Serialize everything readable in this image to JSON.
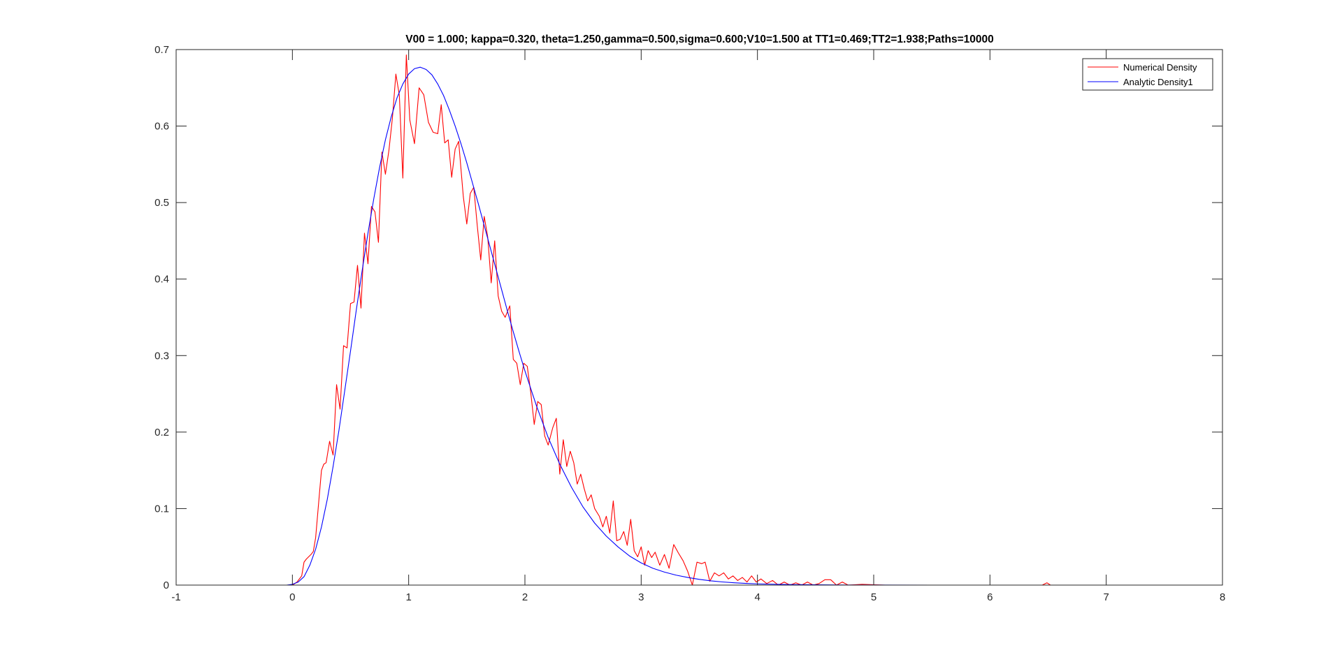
{
  "chart_data": {
    "type": "line",
    "title": "V00 = 1.000; kappa=0.320, theta=1.250,gamma=0.500,sigma=0.600;V10=1.500 at TT1=0.469;TT2=1.938;Paths=10000",
    "xlabel": "",
    "ylabel": "",
    "xlim": [
      -1,
      8
    ],
    "ylim": [
      0,
      0.7
    ],
    "x_ticks": [
      -1,
      0,
      1,
      2,
      3,
      4,
      5,
      6,
      7,
      8
    ],
    "x_tick_labels": [
      "-1",
      "0",
      "1",
      "2",
      "3",
      "4",
      "5",
      "6",
      "7",
      "8"
    ],
    "y_ticks": [
      0,
      0.1,
      0.2,
      0.3,
      0.4,
      0.5,
      0.6,
      0.7
    ],
    "y_tick_labels": [
      "0",
      "0.1",
      "0.2",
      "0.3",
      "0.4",
      "0.5",
      "0.6",
      "0.7"
    ],
    "grid": false,
    "box": true,
    "legend_position": "top-right",
    "legend": [
      "Numerical Density",
      "Analytic Density1"
    ],
    "series": [
      {
        "name": "Numerical Density",
        "color": "#ff0000",
        "points": [
          [
            0.0,
            0.0
          ],
          [
            0.04,
            0.004
          ],
          [
            0.08,
            0.012
          ],
          [
            0.1,
            0.03
          ],
          [
            0.12,
            0.034
          ],
          [
            0.16,
            0.04
          ],
          [
            0.18,
            0.044
          ],
          [
            0.2,
            0.062
          ],
          [
            0.23,
            0.115
          ],
          [
            0.25,
            0.15
          ],
          [
            0.27,
            0.158
          ],
          [
            0.29,
            0.16
          ],
          [
            0.32,
            0.188
          ],
          [
            0.35,
            0.17
          ],
          [
            0.38,
            0.262
          ],
          [
            0.41,
            0.23
          ],
          [
            0.44,
            0.313
          ],
          [
            0.47,
            0.31
          ],
          [
            0.5,
            0.368
          ],
          [
            0.53,
            0.37
          ],
          [
            0.56,
            0.418
          ],
          [
            0.59,
            0.362
          ],
          [
            0.62,
            0.46
          ],
          [
            0.65,
            0.42
          ],
          [
            0.68,
            0.495
          ],
          [
            0.71,
            0.488
          ],
          [
            0.74,
            0.448
          ],
          [
            0.77,
            0.566
          ],
          [
            0.8,
            0.537
          ],
          [
            0.83,
            0.568
          ],
          [
            0.86,
            0.61
          ],
          [
            0.89,
            0.668
          ],
          [
            0.92,
            0.64
          ],
          [
            0.95,
            0.532
          ],
          [
            0.98,
            0.693
          ],
          [
            1.01,
            0.608
          ],
          [
            1.05,
            0.577
          ],
          [
            1.09,
            0.65
          ],
          [
            1.13,
            0.641
          ],
          [
            1.17,
            0.605
          ],
          [
            1.21,
            0.592
          ],
          [
            1.25,
            0.59
          ],
          [
            1.28,
            0.628
          ],
          [
            1.31,
            0.578
          ],
          [
            1.34,
            0.582
          ],
          [
            1.37,
            0.533
          ],
          [
            1.4,
            0.57
          ],
          [
            1.43,
            0.58
          ],
          [
            1.47,
            0.508
          ],
          [
            1.5,
            0.472
          ],
          [
            1.53,
            0.512
          ],
          [
            1.56,
            0.52
          ],
          [
            1.59,
            0.47
          ],
          [
            1.62,
            0.425
          ],
          [
            1.65,
            0.482
          ],
          [
            1.68,
            0.455
          ],
          [
            1.71,
            0.395
          ],
          [
            1.74,
            0.45
          ],
          [
            1.77,
            0.378
          ],
          [
            1.8,
            0.358
          ],
          [
            1.83,
            0.35
          ],
          [
            1.87,
            0.365
          ],
          [
            1.9,
            0.295
          ],
          [
            1.93,
            0.29
          ],
          [
            1.96,
            0.262
          ],
          [
            1.99,
            0.29
          ],
          [
            2.02,
            0.286
          ],
          [
            2.05,
            0.252
          ],
          [
            2.08,
            0.21
          ],
          [
            2.11,
            0.24
          ],
          [
            2.14,
            0.236
          ],
          [
            2.17,
            0.195
          ],
          [
            2.2,
            0.183
          ],
          [
            2.24,
            0.206
          ],
          [
            2.27,
            0.218
          ],
          [
            2.3,
            0.145
          ],
          [
            2.33,
            0.19
          ],
          [
            2.36,
            0.155
          ],
          [
            2.39,
            0.175
          ],
          [
            2.42,
            0.16
          ],
          [
            2.45,
            0.132
          ],
          [
            2.48,
            0.145
          ],
          [
            2.51,
            0.126
          ],
          [
            2.54,
            0.11
          ],
          [
            2.57,
            0.118
          ],
          [
            2.6,
            0.1
          ],
          [
            2.64,
            0.09
          ],
          [
            2.67,
            0.076
          ],
          [
            2.7,
            0.09
          ],
          [
            2.73,
            0.068
          ],
          [
            2.76,
            0.11
          ],
          [
            2.79,
            0.058
          ],
          [
            2.82,
            0.06
          ],
          [
            2.85,
            0.07
          ],
          [
            2.88,
            0.052
          ],
          [
            2.91,
            0.086
          ],
          [
            2.94,
            0.045
          ],
          [
            2.97,
            0.037
          ],
          [
            3.0,
            0.05
          ],
          [
            3.03,
            0.026
          ],
          [
            3.06,
            0.045
          ],
          [
            3.09,
            0.036
          ],
          [
            3.12,
            0.043
          ],
          [
            3.16,
            0.026
          ],
          [
            3.2,
            0.04
          ],
          [
            3.24,
            0.022
          ],
          [
            3.28,
            0.053
          ],
          [
            3.32,
            0.042
          ],
          [
            3.36,
            0.032
          ],
          [
            3.4,
            0.018
          ],
          [
            3.44,
            0.0
          ],
          [
            3.48,
            0.03
          ],
          [
            3.52,
            0.028
          ],
          [
            3.55,
            0.03
          ],
          [
            3.59,
            0.005
          ],
          [
            3.63,
            0.016
          ],
          [
            3.67,
            0.012
          ],
          [
            3.71,
            0.016
          ],
          [
            3.75,
            0.008
          ],
          [
            3.79,
            0.012
          ],
          [
            3.83,
            0.006
          ],
          [
            3.87,
            0.01
          ],
          [
            3.91,
            0.004
          ],
          [
            3.95,
            0.012
          ],
          [
            3.99,
            0.004
          ],
          [
            4.03,
            0.008
          ],
          [
            4.08,
            0.002
          ],
          [
            4.13,
            0.006
          ],
          [
            4.18,
            0.0
          ],
          [
            4.23,
            0.004
          ],
          [
            4.28,
            0.0
          ],
          [
            4.33,
            0.003
          ],
          [
            4.38,
            0.0
          ],
          [
            4.43,
            0.004
          ],
          [
            4.48,
            0.0
          ],
          [
            4.53,
            0.002
          ],
          [
            4.58,
            0.007
          ],
          [
            4.63,
            0.007
          ],
          [
            4.68,
            0.0
          ],
          [
            4.73,
            0.004
          ],
          [
            4.78,
            0.0
          ],
          [
            4.9,
            0.001
          ],
          [
            5.1,
            0.0
          ],
          [
            5.4,
            0.0
          ],
          [
            5.8,
            0.0
          ],
          [
            6.2,
            0.0
          ],
          [
            6.45,
            0.0
          ],
          [
            6.49,
            0.003
          ],
          [
            6.52,
            0.0
          ]
        ]
      },
      {
        "name": "Analytic Density1",
        "color": "#0000ff",
        "points": [
          [
            -0.18,
            0.0
          ],
          [
            -0.05,
            0.0
          ],
          [
            0.0,
            0.001
          ],
          [
            0.05,
            0.004
          ],
          [
            0.1,
            0.011
          ],
          [
            0.15,
            0.026
          ],
          [
            0.2,
            0.047
          ],
          [
            0.25,
            0.076
          ],
          [
            0.3,
            0.112
          ],
          [
            0.35,
            0.155
          ],
          [
            0.4,
            0.202
          ],
          [
            0.45,
            0.254
          ],
          [
            0.5,
            0.306
          ],
          [
            0.55,
            0.36
          ],
          [
            0.6,
            0.411
          ],
          [
            0.65,
            0.46
          ],
          [
            0.7,
            0.505
          ],
          [
            0.75,
            0.546
          ],
          [
            0.8,
            0.582
          ],
          [
            0.85,
            0.612
          ],
          [
            0.9,
            0.637
          ],
          [
            0.95,
            0.655
          ],
          [
            1.0,
            0.668
          ],
          [
            1.05,
            0.675
          ],
          [
            1.1,
            0.677
          ],
          [
            1.15,
            0.674
          ],
          [
            1.2,
            0.667
          ],
          [
            1.25,
            0.655
          ],
          [
            1.3,
            0.64
          ],
          [
            1.35,
            0.621
          ],
          [
            1.4,
            0.6
          ],
          [
            1.45,
            0.577
          ],
          [
            1.5,
            0.552
          ],
          [
            1.55,
            0.525
          ],
          [
            1.6,
            0.498
          ],
          [
            1.65,
            0.47
          ],
          [
            1.7,
            0.442
          ],
          [
            1.75,
            0.414
          ],
          [
            1.8,
            0.386
          ],
          [
            1.85,
            0.358
          ],
          [
            1.9,
            0.331
          ],
          [
            1.95,
            0.305
          ],
          [
            2.0,
            0.28
          ],
          [
            2.1,
            0.234
          ],
          [
            2.2,
            0.193
          ],
          [
            2.3,
            0.158
          ],
          [
            2.4,
            0.128
          ],
          [
            2.5,
            0.102
          ],
          [
            2.6,
            0.081
          ],
          [
            2.7,
            0.064
          ],
          [
            2.8,
            0.05
          ],
          [
            2.9,
            0.038
          ],
          [
            3.0,
            0.029
          ],
          [
            3.1,
            0.022
          ],
          [
            3.2,
            0.017
          ],
          [
            3.3,
            0.013
          ],
          [
            3.4,
            0.01
          ],
          [
            3.5,
            0.0075
          ],
          [
            3.6,
            0.0055
          ],
          [
            3.7,
            0.0041
          ],
          [
            3.8,
            0.003
          ],
          [
            3.9,
            0.0022
          ],
          [
            4.0,
            0.0016
          ],
          [
            4.2,
            0.0009
          ],
          [
            4.4,
            0.0005
          ],
          [
            4.6,
            0.0003
          ],
          [
            4.8,
            0.0001
          ],
          [
            5.0,
            0.0001
          ],
          [
            5.5,
            0.0
          ],
          [
            6.0,
            0.0
          ],
          [
            6.5,
            0.0
          ],
          [
            7.0,
            0.0
          ],
          [
            7.33,
            0.0
          ]
        ]
      }
    ]
  }
}
